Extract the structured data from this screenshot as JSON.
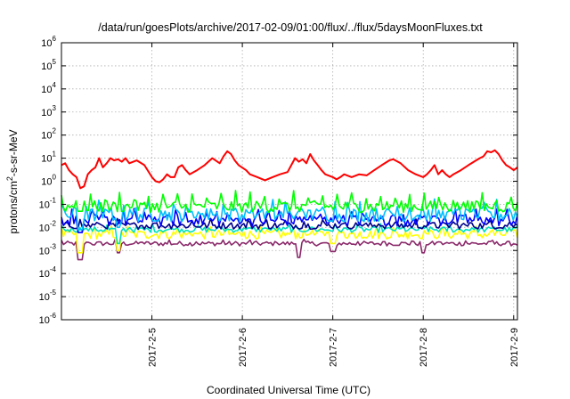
{
  "chart_data": {
    "type": "line",
    "title": "/data/run/goesPlots/archive/2017-02-09/01:00/flux/../flux/5daysMoonFluxes.txt",
    "xlabel": "Coordinated Universal Time (UTC)",
    "ylabel": {
      "base": "protons/cm",
      "sup": "2",
      "rest": "-s-sr-MeV"
    },
    "x_scale": "time",
    "x_range": [
      "2017-02-04 00:00",
      "2017-02-09 01:00"
    ],
    "x_ticks": [
      {
        "value": "2017-02-05 00:00",
        "label": "2017-2-5"
      },
      {
        "value": "2017-02-06 00:00",
        "label": "2017-2-6"
      },
      {
        "value": "2017-02-07 00:00",
        "label": "2017-2-7"
      },
      {
        "value": "2017-02-08 00:00",
        "label": "2017-2-8"
      },
      {
        "value": "2017-02-09 00:00",
        "label": "2017-2-9"
      }
    ],
    "y_scale": "log",
    "ylim": [
      1e-06,
      1000000.0
    ],
    "y_ticks": [
      {
        "value": 1000000.0,
        "base": "10",
        "exp": "6"
      },
      {
        "value": 100000.0,
        "base": "10",
        "exp": "5"
      },
      {
        "value": 10000.0,
        "base": "10",
        "exp": "4"
      },
      {
        "value": 1000.0,
        "base": "10",
        "exp": "3"
      },
      {
        "value": 100.0,
        "base": "10",
        "exp": "2"
      },
      {
        "value": 10.0,
        "base": "10",
        "exp": "1"
      },
      {
        "value": 1.0,
        "base": "10",
        "exp": "0"
      },
      {
        "value": 0.1,
        "base": "10",
        "exp": "-1"
      },
      {
        "value": 0.01,
        "base": "10",
        "exp": "-2"
      },
      {
        "value": 0.001,
        "base": "10",
        "exp": "-3"
      },
      {
        "value": 0.0001,
        "base": "10",
        "exp": "-4"
      },
      {
        "value": 1e-05,
        "base": "10",
        "exp": "-5"
      },
      {
        "value": 1e-06,
        "base": "10",
        "exp": "-6"
      }
    ],
    "grid": true,
    "series": [
      {
        "color": "#ff0000",
        "points": [
          [
            "2017-02-04 00:00",
            5
          ],
          [
            "2017-02-04 01:00",
            6
          ],
          [
            "2017-02-04 02:00",
            3
          ],
          [
            "2017-02-04 03:00",
            2
          ],
          [
            "2017-02-04 04:00",
            1.5
          ],
          [
            "2017-02-04 05:00",
            0.5
          ],
          [
            "2017-02-04 06:00",
            0.6
          ],
          [
            "2017-02-04 07:00",
            2
          ],
          [
            "2017-02-04 08:00",
            3
          ],
          [
            "2017-02-04 09:00",
            4
          ],
          [
            "2017-02-04 10:00",
            10
          ],
          [
            "2017-02-04 11:00",
            4
          ],
          [
            "2017-02-04 12:00",
            6
          ],
          [
            "2017-02-04 13:00",
            10
          ],
          [
            "2017-02-04 14:00",
            8
          ],
          [
            "2017-02-04 15:00",
            9
          ],
          [
            "2017-02-04 16:00",
            7
          ],
          [
            "2017-02-04 17:00",
            10
          ],
          [
            "2017-02-04 18:00",
            6
          ],
          [
            "2017-02-04 20:00",
            8
          ],
          [
            "2017-02-04 22:00",
            5
          ],
          [
            "2017-02-05 00:00",
            1.5
          ],
          [
            "2017-02-05 01:00",
            1
          ],
          [
            "2017-02-05 02:00",
            0.9
          ],
          [
            "2017-02-05 03:00",
            1.2
          ],
          [
            "2017-02-05 04:00",
            2
          ],
          [
            "2017-02-05 05:00",
            1.5
          ],
          [
            "2017-02-05 06:00",
            1.5
          ],
          [
            "2017-02-05 07:00",
            4
          ],
          [
            "2017-02-05 08:00",
            5
          ],
          [
            "2017-02-05 09:00",
            3
          ],
          [
            "2017-02-05 10:00",
            2
          ],
          [
            "2017-02-05 12:00",
            3
          ],
          [
            "2017-02-05 14:00",
            5
          ],
          [
            "2017-02-05 16:00",
            10
          ],
          [
            "2017-02-05 18:00",
            6
          ],
          [
            "2017-02-05 19:00",
            12
          ],
          [
            "2017-02-05 20:00",
            20
          ],
          [
            "2017-02-05 21:00",
            15
          ],
          [
            "2017-02-05 22:00",
            8
          ],
          [
            "2017-02-05 23:00",
            5
          ],
          [
            "2017-02-06 01:00",
            3
          ],
          [
            "2017-02-06 02:00",
            2
          ],
          [
            "2017-02-06 04:00",
            1.5
          ],
          [
            "2017-02-06 06:00",
            1.1
          ],
          [
            "2017-02-06 08:00",
            1.5
          ],
          [
            "2017-02-06 10:00",
            2
          ],
          [
            "2017-02-06 12:00",
            2.5
          ],
          [
            "2017-02-06 13:00",
            5
          ],
          [
            "2017-02-06 14:00",
            10
          ],
          [
            "2017-02-06 15:00",
            7
          ],
          [
            "2017-02-06 16:00",
            9
          ],
          [
            "2017-02-06 17:00",
            6
          ],
          [
            "2017-02-06 18:00",
            15
          ],
          [
            "2017-02-06 19:00",
            8
          ],
          [
            "2017-02-06 20:00",
            5
          ],
          [
            "2017-02-06 21:00",
            3
          ],
          [
            "2017-02-06 22:00",
            2
          ],
          [
            "2017-02-07 00:00",
            1.5
          ],
          [
            "2017-02-07 01:00",
            1.2
          ],
          [
            "2017-02-07 02:00",
            1.5
          ],
          [
            "2017-02-07 03:00",
            2
          ],
          [
            "2017-02-07 05:00",
            1.5
          ],
          [
            "2017-02-07 07:00",
            2
          ],
          [
            "2017-02-07 09:00",
            1.8
          ],
          [
            "2017-02-07 11:00",
            3
          ],
          [
            "2017-02-07 13:00",
            5
          ],
          [
            "2017-02-07 15:00",
            8
          ],
          [
            "2017-02-07 16:00",
            9
          ],
          [
            "2017-02-07 18:00",
            6
          ],
          [
            "2017-02-07 20:00",
            3
          ],
          [
            "2017-02-07 22:00",
            2
          ],
          [
            "2017-02-08 00:00",
            1.5
          ],
          [
            "2017-02-08 01:00",
            2
          ],
          [
            "2017-02-08 02:00",
            3
          ],
          [
            "2017-02-08 03:00",
            5
          ],
          [
            "2017-02-08 04:00",
            2
          ],
          [
            "2017-02-08 05:00",
            3
          ],
          [
            "2017-02-08 06:00",
            2
          ],
          [
            "2017-02-08 07:00",
            1.5
          ],
          [
            "2017-02-08 08:00",
            2
          ],
          [
            "2017-02-08 10:00",
            3
          ],
          [
            "2017-02-08 12:00",
            5
          ],
          [
            "2017-02-08 14:00",
            8
          ],
          [
            "2017-02-08 15:00",
            10
          ],
          [
            "2017-02-08 16:00",
            12
          ],
          [
            "2017-02-08 17:00",
            20
          ],
          [
            "2017-02-08 18:00",
            18
          ],
          [
            "2017-02-08 19:00",
            22
          ],
          [
            "2017-02-08 20:00",
            15
          ],
          [
            "2017-02-08 21:00",
            8
          ],
          [
            "2017-02-08 22:00",
            5
          ],
          [
            "2017-02-08 23:00",
            4
          ],
          [
            "2017-02-09 00:00",
            3
          ],
          [
            "2017-02-09 01:00",
            4
          ]
        ]
      },
      {
        "color": "#00ff00",
        "base": 0.08,
        "osc": 0.25,
        "spikeEvery": 7,
        "spikeFactor": 2.8,
        "dips": [
          [
            "2017-02-04 05:00",
            0.05
          ]
        ]
      },
      {
        "color": "#00bfff",
        "base": 0.035,
        "osc": 0.3,
        "spikeEvery": 6,
        "spikeFactor": 2.5,
        "dips": [
          [
            "2017-02-04 05:00",
            0.008
          ],
          [
            "2017-02-04 15:00",
            0.01
          ]
        ]
      },
      {
        "color": "#0000ff",
        "base": 0.02,
        "osc": 0.25,
        "spikeEvery": 5,
        "spikeFactor": 2.0,
        "dips": [
          [
            "2017-02-04 05:00",
            0.006
          ]
        ]
      },
      {
        "color": "#00008b",
        "base": 0.012,
        "osc": 0.15,
        "spikeEvery": 9,
        "spikeFactor": 1.5,
        "dips": []
      },
      {
        "color": "#00e0c0",
        "base": 0.008,
        "osc": 0.12,
        "spikeEvery": 11,
        "spikeFactor": 1.4,
        "dips": [
          [
            "2017-02-04 15:00",
            0.002
          ]
        ]
      },
      {
        "color": "#ffff00",
        "base": 0.005,
        "osc": 0.2,
        "spikeEvery": 8,
        "spikeFactor": 1.6,
        "dips": [
          [
            "2017-02-04 05:00",
            0.0008
          ],
          [
            "2017-02-04 15:00",
            0.001
          ],
          [
            "2017-02-07 00:00",
            0.002
          ]
        ]
      },
      {
        "color": "#8b2a6b",
        "base": 0.002,
        "osc": 0.1,
        "spikeEvery": 13,
        "spikeFactor": 1.3,
        "dips": [
          [
            "2017-02-04 05:00",
            0.0004
          ],
          [
            "2017-02-04 15:00",
            0.0008
          ],
          [
            "2017-02-06 15:00",
            0.0005
          ],
          [
            "2017-02-07 00:00",
            0.0009
          ],
          [
            "2017-02-08 00:00",
            0.0008
          ]
        ]
      }
    ]
  }
}
